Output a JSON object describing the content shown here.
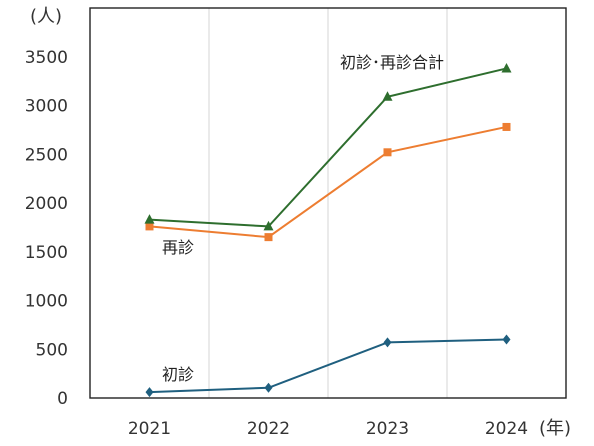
{
  "chart_data": {
    "type": "line",
    "categories": [
      "2021",
      "2022",
      "2023",
      "2024"
    ],
    "series": [
      {
        "name": "初診",
        "values": [
          60,
          105,
          570,
          600
        ],
        "color": "#1f5f7f",
        "marker": "diamond"
      },
      {
        "name": "再診",
        "values": [
          1760,
          1650,
          2520,
          2780
        ],
        "color": "#ed7d31",
        "marker": "square"
      },
      {
        "name": "初診･再診合計",
        "values": [
          1830,
          1760,
          3090,
          3380
        ],
        "color": "#2e6e2e",
        "marker": "triangle"
      }
    ],
    "y_unit": "(人)",
    "x_unit": "(年)",
    "ylim": [
      0,
      4000
    ],
    "yticks": [
      0,
      500,
      1000,
      1500,
      2000,
      2500,
      3000,
      3500
    ],
    "grid": "vertical",
    "legend": "inline labels"
  }
}
